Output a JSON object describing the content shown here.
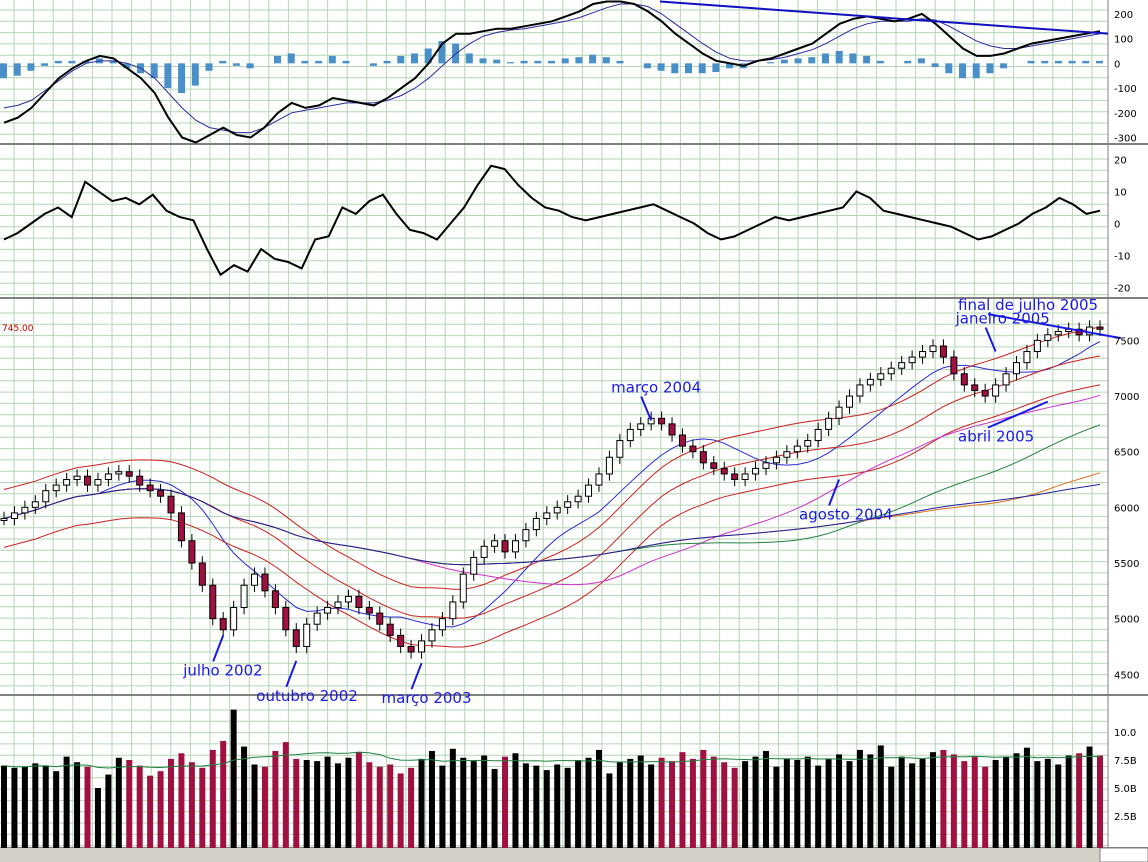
{
  "colors": {
    "grid": "#b4d6b4",
    "annotation": "#1a1ae6",
    "candle_down": "#a01040",
    "candle_up": "#ffffff",
    "volume_up": "#000000",
    "volume_down": "#a01040",
    "macd_hist": "#4a90c8",
    "ref_label": "#cc0000"
  },
  "reference_label": "745.00",
  "chart_data": [
    {
      "type": "line",
      "panel": "macd",
      "ylim": [
        -310,
        240
      ],
      "yticks": [
        200,
        100,
        0,
        -100,
        -200,
        -300
      ],
      "series": [
        {
          "values": [
            -240,
            -220,
            -180,
            -120,
            -60,
            -20,
            10,
            30,
            20,
            -20,
            -60,
            -120,
            -220,
            -300,
            -320,
            -290,
            -260,
            -290,
            -300,
            -260,
            -200,
            -160,
            -180,
            -170,
            -140,
            -150,
            -160,
            -170,
            -140,
            -100,
            -60,
            0,
            80,
            120,
            120,
            130,
            140,
            140,
            150,
            160,
            170,
            190,
            210,
            240,
            250,
            250,
            240,
            210,
            170,
            120,
            80,
            40,
            10,
            0,
            -10,
            10,
            20,
            40,
            60,
            80,
            120,
            160,
            180,
            190,
            180,
            170,
            180,
            200,
            160,
            110,
            60,
            30,
            30,
            40,
            60,
            80,
            90,
            100,
            110,
            120,
            130
          ]
        },
        {
          "values": [
            -180,
            -170,
            -150,
            -110,
            -70,
            -30,
            0,
            10,
            10,
            0,
            -20,
            -60,
            -120,
            -180,
            -230,
            -260,
            -270,
            -280,
            -280,
            -260,
            -230,
            -200,
            -190,
            -180,
            -170,
            -160,
            -160,
            -160,
            -150,
            -130,
            -100,
            -60,
            -10,
            40,
            80,
            110,
            125,
            135,
            140,
            150,
            160,
            170,
            185,
            205,
            225,
            240,
            240,
            230,
            200,
            160,
            120,
            80,
            45,
            20,
            10,
            10,
            15,
            25,
            40,
            55,
            80,
            110,
            140,
            160,
            170,
            170,
            170,
            180,
            175,
            150,
            120,
            90,
            70,
            60,
            60,
            70,
            80,
            90,
            100,
            110,
            120
          ]
        },
        {
          "values": [
            -60,
            -50,
            -30,
            -10,
            10,
            10,
            10,
            20,
            10,
            -20,
            -40,
            -60,
            -100,
            -120,
            -90,
            -30,
            10,
            -10,
            -20,
            0,
            30,
            40,
            10,
            10,
            30,
            10,
            0,
            -10,
            10,
            30,
            40,
            60,
            90,
            80,
            40,
            20,
            15,
            5,
            10,
            10,
            10,
            20,
            25,
            35,
            25,
            10,
            0,
            -20,
            -30,
            -40,
            -40,
            -40,
            -35,
            -20,
            -20,
            0,
            5,
            15,
            20,
            25,
            40,
            50,
            40,
            30,
            10,
            0,
            10,
            20,
            -15,
            -40,
            -60,
            -60,
            -40,
            -20,
            0,
            10,
            10,
            10,
            10,
            10,
            10
          ]
        },
        {
          "values": [
            250,
            120
          ]
        }
      ]
    },
    {
      "type": "line",
      "panel": "oscillator",
      "ylim": [
        -22,
        22
      ],
      "yticks": [
        20,
        10,
        0,
        -10,
        -20
      ],
      "series": [
        {
          "values": [
            -5,
            -3,
            0,
            3,
            5,
            2,
            13,
            10,
            7,
            8,
            6,
            9,
            4,
            2,
            1,
            -8,
            -16,
            -13,
            -15,
            -8,
            -11,
            -12,
            -14,
            -5,
            -4,
            5,
            3,
            7,
            9,
            3,
            -2,
            -3,
            -5,
            0,
            5,
            12,
            18,
            17,
            12,
            8,
            5,
            4,
            2,
            1,
            2,
            3,
            4,
            5,
            6,
            4,
            2,
            0,
            -3,
            -5,
            -4,
            -2,
            0,
            2,
            1,
            2,
            3,
            4,
            5,
            10,
            8,
            4,
            3,
            2,
            1,
            0,
            -1,
            -3,
            -5,
            -4,
            -2,
            0,
            3,
            5,
            8,
            6,
            3,
            4
          ]
        }
      ]
    },
    {
      "type": "bar",
      "panel": "price",
      "ylim": [
        4350,
        7800
      ],
      "yticks": [
        7500,
        7000,
        6500,
        6000,
        5500,
        5000,
        4500
      ],
      "series": [
        {
          "values": [
            5900,
            5950,
            6000,
            6050,
            6150,
            6200,
            6250,
            6280,
            6200,
            6250,
            6300,
            6320,
            6280,
            6200,
            6150,
            6100,
            5950,
            5700,
            5500,
            5300,
            5000,
            4900,
            5100,
            5300,
            5400,
            5250,
            5100,
            4900,
            4750,
            4950,
            5050,
            5100,
            5150,
            5200,
            5100,
            5050,
            4950,
            4850,
            4750,
            4700,
            4800,
            4900,
            5000,
            5150,
            5400,
            5550,
            5650,
            5700,
            5600,
            5700,
            5800,
            5900,
            5950,
            6000,
            6050,
            6100,
            6200,
            6300,
            6450,
            6600,
            6700,
            6750,
            6800,
            6750,
            6650,
            6550,
            6500,
            6400,
            6350,
            6300,
            6250,
            6300,
            6350,
            6400,
            6450,
            6500,
            6550,
            6600,
            6700,
            6800,
            6900,
            7000,
            7100,
            7150,
            7200,
            7250,
            7300,
            7350,
            7400,
            7450,
            7350,
            7200,
            7100,
            7050,
            7000,
            7100,
            7200,
            7300,
            7400,
            7500,
            7550,
            7580,
            7600,
            7550,
            7620,
            7600
          ]
        }
      ]
    },
    {
      "type": "bar",
      "panel": "volume",
      "ylim": [
        0,
        12.5
      ],
      "yticks": [
        "10.0",
        "7.5B",
        "5.0B",
        "2.5B"
      ],
      "series": [
        {
          "values": [
            7.0,
            6.8,
            6.9,
            7.2,
            7.0,
            6.5,
            7.8,
            7.3,
            6.9,
            5.0,
            6.2,
            7.7,
            7.5,
            7.0,
            6.1,
            6.5,
            7.6,
            8.1,
            7.3,
            6.8,
            8.4,
            9.2,
            12.0,
            8.7,
            7.1,
            6.9,
            8.3,
            9.1,
            7.6,
            7.5,
            7.4,
            7.8,
            7.2,
            7.7,
            8.2,
            7.3,
            6.9,
            7.1,
            6.3,
            6.8,
            7.6,
            8.3,
            7.0,
            8.5,
            7.7,
            7.4,
            7.9,
            6.7,
            7.8,
            8.1,
            7.2,
            7.0,
            6.6,
            7.1,
            6.8,
            7.5,
            7.7,
            8.4,
            6.3,
            7.3,
            7.6,
            7.9,
            7.1,
            7.7,
            7.4,
            8.2,
            7.6,
            8.4,
            7.8,
            7.3,
            6.8,
            7.4,
            7.8,
            8.3,
            6.9,
            7.6,
            7.5,
            7.8,
            7.0,
            7.6,
            8.0,
            7.4,
            8.4,
            8.0,
            8.8,
            6.9,
            7.8,
            7.2,
            7.6,
            8.2,
            8.4,
            8.0,
            7.4,
            7.8,
            6.9,
            7.5,
            7.8,
            8.1,
            8.6,
            7.4,
            7.6,
            7.1,
            7.9,
            8.1,
            8.7,
            7.9
          ]
        }
      ]
    }
  ],
  "annotations": [
    {
      "label": "julho 2002",
      "idx": 21,
      "price": 4850
    },
    {
      "label": "outubro 2002",
      "idx": 28,
      "price": 4620
    },
    {
      "label": "março 2003",
      "idx": 40,
      "price": 4600
    },
    {
      "label": "março 2004",
      "idx": 62,
      "price": 6780
    },
    {
      "label": "agosto 2004",
      "idx": 80,
      "price": 6250
    },
    {
      "label": "janeiro 2005",
      "idx": 95,
      "price": 7400
    },
    {
      "label": "abril 2005",
      "idx": 100,
      "price": 6950
    },
    {
      "label": "final de julho 2005",
      "idx": 107,
      "price": 7520
    }
  ]
}
